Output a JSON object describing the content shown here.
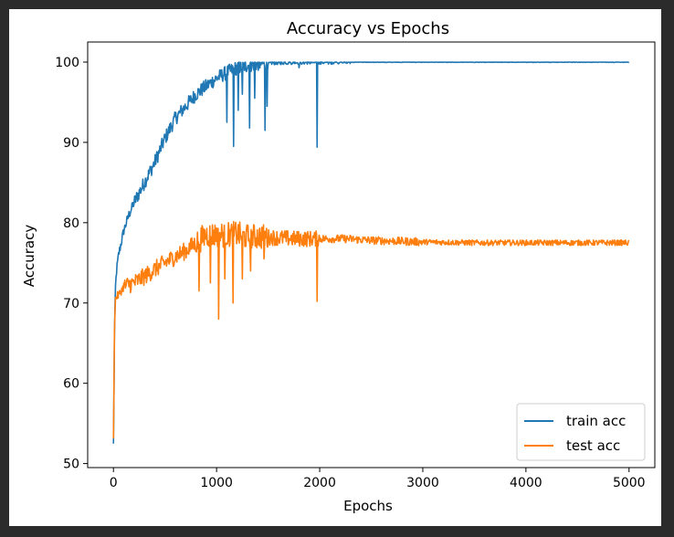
{
  "chart_data": {
    "type": "line",
    "title": "Accuracy vs Epochs",
    "xlabel": "Epochs",
    "ylabel": "Accuracy",
    "xlim": [
      -250,
      5250
    ],
    "ylim": [
      49.5,
      102.5
    ],
    "xticks": [
      0,
      1000,
      2000,
      3000,
      4000,
      5000
    ],
    "yticks": [
      50,
      60,
      70,
      80,
      90,
      100
    ],
    "grid": false,
    "legend_position": "lower-right",
    "x": [
      0,
      10,
      20,
      30,
      50,
      75,
      100,
      150,
      200,
      300,
      400,
      500,
      600,
      700,
      800,
      900,
      1000,
      1100,
      1200,
      1300,
      1400,
      1500,
      1750,
      2000,
      2250,
      2500,
      3000,
      3500,
      4000,
      4500,
      5000
    ],
    "series": [
      {
        "name": "train acc",
        "color": "#1f77b4",
        "values": [
          52.3,
          66,
          72,
          74,
          76,
          77.5,
          79,
          81,
          82.5,
          85,
          87.5,
          90.5,
          93,
          94.5,
          96,
          97,
          98,
          98.7,
          99.3,
          99.6,
          99.8,
          99.9,
          99.95,
          99.98,
          100,
          100,
          100,
          100,
          100,
          100,
          100
        ],
        "dips": [
          [
            1100,
            92.5
          ],
          [
            1165,
            89.5
          ],
          [
            1210,
            94
          ],
          [
            1250,
            96
          ],
          [
            1320,
            91.8
          ],
          [
            1370,
            95.5
          ],
          [
            1470,
            91.5
          ],
          [
            1490,
            94.5
          ],
          [
            1800,
            99.3
          ],
          [
            1975,
            89.4
          ]
        ]
      },
      {
        "name": "test acc",
        "color": "#ff7f0e",
        "values": [
          52.8,
          67,
          70.5,
          70.8,
          71,
          71.5,
          72,
          72.3,
          72.5,
          73.3,
          74.2,
          75,
          75.8,
          76.5,
          77.5,
          78.5,
          78.5,
          78.5,
          78.6,
          78.2,
          78.3,
          78.2,
          78,
          78,
          78,
          77.8,
          77.6,
          77.5,
          77.5,
          77.5,
          77.5
        ],
        "dips": [
          [
            830,
            71.5
          ],
          [
            940,
            72.5
          ],
          [
            1020,
            68
          ],
          [
            1080,
            73
          ],
          [
            1160,
            70
          ],
          [
            1250,
            73
          ],
          [
            1330,
            74
          ],
          [
            1460,
            75.5
          ],
          [
            1975,
            70.2
          ]
        ]
      }
    ]
  }
}
